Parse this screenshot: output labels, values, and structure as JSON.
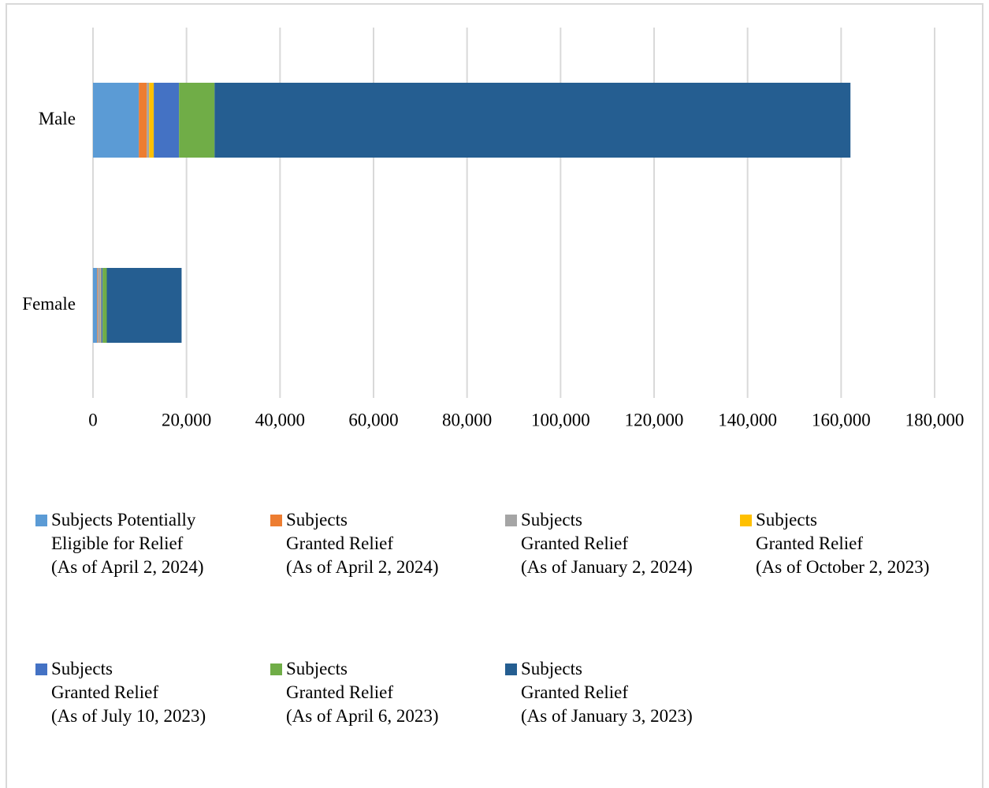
{
  "chart_data": {
    "type": "stacked_barh",
    "categories": [
      "Male",
      "Female"
    ],
    "series": [
      {
        "name": "Subjects Potentially\nEligible for Relief\n(As of April 2, 2024)",
        "color": "#5b9bd5",
        "values": [
          9800,
          900
        ]
      },
      {
        "name": "Subjects\nGranted Relief\n(As of April 2, 2024)",
        "color": "#ed7d31",
        "values": [
          1700,
          150
        ]
      },
      {
        "name": "Subjects\nGranted Relief\n(As of January 2, 2024)",
        "color": "#a5a5a5",
        "values": [
          500,
          600
        ]
      },
      {
        "name": "Subjects\nGranted Relief\n(As of October 2, 2023)",
        "color": "#ffc000",
        "values": [
          1000,
          100
        ]
      },
      {
        "name": "Subjects\nGranted Relief\n(As of July 10, 2023)",
        "color": "#4472c4",
        "values": [
          5400,
          300
        ]
      },
      {
        "name": "Subjects\nGranted Relief\n(As of April 6, 2023)",
        "color": "#70ad47",
        "values": [
          7600,
          900
        ]
      },
      {
        "name": "Subjects\nGranted Relief\n(As of January 3, 2023)",
        "color": "#255e91",
        "values": [
          136000,
          16000
        ]
      }
    ],
    "xlim": [
      0,
      180000
    ],
    "xticks": [
      0,
      {
        "value": 20000,
        "label": "20,000"
      },
      {
        "value": 40000,
        "label": "40,000"
      },
      {
        "value": 60000,
        "label": "60,000"
      },
      {
        "value": 80000,
        "label": "80,000"
      },
      {
        "value": 100000,
        "label": "100,000"
      },
      {
        "value": 120000,
        "label": "120,000"
      },
      {
        "value": 140000,
        "label": "140,000"
      },
      {
        "value": 160000,
        "label": "160,000"
      },
      {
        "value": 180000,
        "label": "180,000"
      }
    ],
    "grid": true,
    "legend": "bottom"
  }
}
